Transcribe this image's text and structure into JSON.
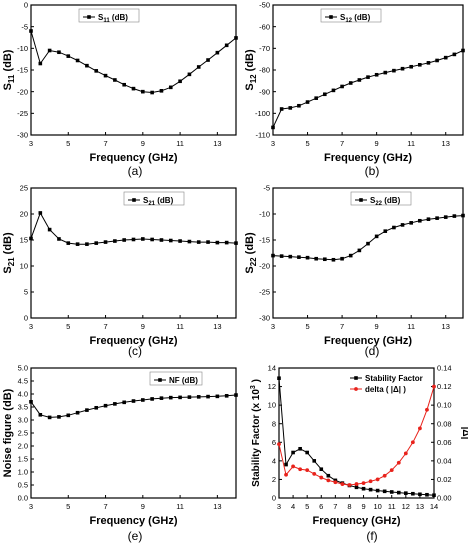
{
  "chart_data": [
    {
      "type": "line",
      "panel_label": "(a)",
      "xlabel": "Frequency (GHz)",
      "ylabel": "S11 (dB)",
      "ylabel_main": "S",
      "ylabel_sub": "11",
      "ylabel_rest": " (dB)",
      "xlim": [
        3,
        14
      ],
      "ylim": [
        -30,
        0
      ],
      "xticks": [
        "3",
        "5",
        "7",
        "9",
        "11",
        "13"
      ],
      "xtick_values": [
        3,
        5,
        7,
        9,
        11,
        13
      ],
      "yticks": [
        "-30",
        "-25",
        "-20",
        "-15",
        "-10",
        "-5",
        "0"
      ],
      "ytick_values": [
        -30,
        -25,
        -20,
        -15,
        -10,
        -5,
        0
      ],
      "grid": false,
      "legend_position": "top-left",
      "series": [
        {
          "legend_main": "S",
          "legend_sub": "11",
          "legend_rest": " (dB)",
          "color": "#000000",
          "marker": "square",
          "x": [
            3,
            3.5,
            4,
            4.5,
            5,
            5.5,
            6,
            6.5,
            7,
            7.5,
            8,
            8.5,
            9,
            9.5,
            10,
            10.5,
            11,
            11.5,
            12,
            12.5,
            13,
            13.5,
            14
          ],
          "y": [
            -6,
            -13.5,
            -10.5,
            -10.9,
            -11.8,
            -12.8,
            -14,
            -15.2,
            -16.3,
            -17.3,
            -18.4,
            -19.3,
            -20,
            -20.2,
            -19.8,
            -19,
            -17.6,
            -16,
            -14.3,
            -12.7,
            -11,
            -9.3,
            -7.6
          ]
        }
      ]
    },
    {
      "type": "line",
      "panel_label": "(b)",
      "xlabel": "Frequency (GHz)",
      "ylabel": "S12 (dB)",
      "ylabel_main": "S",
      "ylabel_sub": "12",
      "ylabel_rest": " (dB)",
      "xlim": [
        3,
        14
      ],
      "ylim": [
        -110,
        -50
      ],
      "xticks": [
        "3",
        "5",
        "7",
        "9",
        "11",
        "13"
      ],
      "xtick_values": [
        3,
        5,
        7,
        9,
        11,
        13
      ],
      "yticks": [
        "-110",
        "-100",
        "-90",
        "-80",
        "-70",
        "-60",
        "-50"
      ],
      "ytick_values": [
        -110,
        -100,
        -90,
        -80,
        -70,
        -60,
        -50
      ],
      "grid": false,
      "legend_position": "top-left",
      "series": [
        {
          "legend_main": "S",
          "legend_sub": "12",
          "legend_rest": " (dB)",
          "color": "#000000",
          "marker": "square",
          "x": [
            3,
            3.5,
            4,
            4.5,
            5,
            5.5,
            6,
            6.5,
            7,
            7.5,
            8,
            8.5,
            9,
            9.5,
            10,
            10.5,
            11,
            11.5,
            12,
            12.5,
            13,
            13.5,
            14
          ],
          "y": [
            -106.5,
            -98,
            -97.5,
            -96.5,
            -94.8,
            -93,
            -91.2,
            -89.4,
            -87.6,
            -86,
            -84.6,
            -83.3,
            -82.2,
            -81.2,
            -80.3,
            -79.4,
            -78.5,
            -77.6,
            -76.7,
            -75.6,
            -74.3,
            -72.8,
            -71
          ]
        }
      ]
    },
    {
      "type": "line",
      "panel_label": "(c)",
      "xlabel": "Frequency (GHz)",
      "ylabel": "S21 (dB)",
      "ylabel_main": "S",
      "ylabel_sub": "21",
      "ylabel_rest": " (dB)",
      "xlim": [
        3,
        14
      ],
      "ylim": [
        0,
        25
      ],
      "xticks": [
        "3",
        "5",
        "7",
        "9",
        "11",
        "13"
      ],
      "xtick_values": [
        3,
        5,
        7,
        9,
        11,
        13
      ],
      "yticks": [
        "0",
        "5",
        "10",
        "15",
        "20",
        "25"
      ],
      "ytick_values": [
        0,
        5,
        10,
        15,
        20,
        25
      ],
      "grid": false,
      "legend_position": "top-right",
      "series": [
        {
          "legend_main": "S",
          "legend_sub": "21",
          "legend_rest": " (dB)",
          "color": "#000000",
          "marker": "square",
          "x": [
            3,
            3.5,
            4,
            4.5,
            5,
            5.5,
            6,
            6.5,
            7,
            7.5,
            8,
            8.5,
            9,
            9.5,
            10,
            10.5,
            11,
            11.5,
            12,
            12.5,
            13,
            13.5,
            14
          ],
          "y": [
            15.3,
            20.2,
            17,
            15.2,
            14.4,
            14.2,
            14.2,
            14.4,
            14.6,
            14.8,
            15,
            15.1,
            15.2,
            15.1,
            15,
            14.9,
            14.8,
            14.7,
            14.6,
            14.6,
            14.5,
            14.5,
            14.4
          ]
        }
      ]
    },
    {
      "type": "line",
      "panel_label": "(d)",
      "xlabel": "Frequency (GHz)",
      "ylabel": "S22 (dB)",
      "ylabel_main": "S",
      "ylabel_sub": "22",
      "ylabel_rest": " (dB)",
      "xlim": [
        3,
        14
      ],
      "ylim": [
        -30,
        -5
      ],
      "xticks": [
        "3",
        "5",
        "7",
        "9",
        "11",
        "13"
      ],
      "xtick_values": [
        3,
        5,
        7,
        9,
        11,
        13
      ],
      "yticks": [
        "-30",
        "-25",
        "-20",
        "-15",
        "-10",
        "-5"
      ],
      "ytick_values": [
        -30,
        -25,
        -20,
        -15,
        -10,
        -5
      ],
      "grid": false,
      "legend_position": "top-right",
      "series": [
        {
          "legend_main": "S",
          "legend_sub": "22",
          "legend_rest": " (dB)",
          "color": "#000000",
          "marker": "square",
          "x": [
            3,
            3.5,
            4,
            4.5,
            5,
            5.5,
            6,
            6.5,
            7,
            7.5,
            8,
            8.5,
            9,
            9.5,
            10,
            10.5,
            11,
            11.5,
            12,
            12.5,
            13,
            13.5,
            14
          ],
          "y": [
            -18,
            -18.1,
            -18.2,
            -18.3,
            -18.4,
            -18.6,
            -18.7,
            -18.8,
            -18.6,
            -18,
            -17,
            -15.7,
            -14.3,
            -13.3,
            -12.6,
            -12.1,
            -11.7,
            -11.3,
            -11,
            -10.8,
            -10.6,
            -10.4,
            -10.3
          ]
        }
      ]
    },
    {
      "type": "line",
      "panel_label": "(e)",
      "xlabel": "Frequency (GHz)",
      "ylabel": "Noise figure (dB)",
      "xlim": [
        3,
        14
      ],
      "ylim": [
        0,
        5
      ],
      "xticks": [
        "3",
        "5",
        "7",
        "9",
        "11",
        "13"
      ],
      "xtick_values": [
        3,
        5,
        7,
        9,
        11,
        13
      ],
      "yticks": [
        "0.0",
        "0.5",
        "1.0",
        "1.5",
        "2.0",
        "2.5",
        "3.0",
        "3.5",
        "4.0",
        "4.5",
        "5.0"
      ],
      "ytick_values": [
        0,
        0.5,
        1,
        1.5,
        2,
        2.5,
        3,
        3.5,
        4,
        4.5,
        5
      ],
      "grid": false,
      "legend_position": "top-right",
      "series": [
        {
          "name": "NF (dB)",
          "color": "#000000",
          "marker": "square",
          "x": [
            3,
            3.5,
            4,
            4.5,
            5,
            5.5,
            6,
            6.5,
            7,
            7.5,
            8,
            8.5,
            9,
            9.5,
            10,
            10.5,
            11,
            11.5,
            12,
            12.5,
            13,
            13.5,
            14
          ],
          "y": [
            3.7,
            3.2,
            3.1,
            3.12,
            3.18,
            3.28,
            3.38,
            3.47,
            3.55,
            3.62,
            3.68,
            3.73,
            3.77,
            3.81,
            3.84,
            3.86,
            3.87,
            3.88,
            3.89,
            3.9,
            3.91,
            3.93,
            3.96
          ]
        }
      ]
    },
    {
      "type": "line",
      "panel_label": "(f)",
      "xlabel": "Frequency (GHz)",
      "ylabel": "Stability Factor (x 10^3 )",
      "ylabel_main": "Stability Factor (x 10",
      "ylabel_sup": "3",
      "ylabel_rest": " )",
      "y2label": "|Δ|",
      "xlim": [
        3,
        14
      ],
      "ylim": [
        0,
        14
      ],
      "y2lim": [
        0,
        0.14
      ],
      "xticks": [
        "3",
        "4",
        "5",
        "6",
        "7",
        "8",
        "9",
        "10",
        "11",
        "12",
        "13",
        "14"
      ],
      "xtick_values": [
        3,
        4,
        5,
        6,
        7,
        8,
        9,
        10,
        11,
        12,
        13,
        14
      ],
      "yticks": [
        "0",
        "2",
        "4",
        "6",
        "8",
        "10",
        "12",
        "14"
      ],
      "ytick_values": [
        0,
        2,
        4,
        6,
        8,
        10,
        12,
        14
      ],
      "y2ticks": [
        "0.00",
        "0.02",
        "0.04",
        "0.06",
        "0.08",
        "0.10",
        "0.12",
        "0.14"
      ],
      "y2tick_values": [
        0,
        0.02,
        0.04,
        0.06,
        0.08,
        0.1,
        0.12,
        0.14
      ],
      "grid": false,
      "legend_position": "top-right",
      "series": [
        {
          "name": "Stability Factor",
          "color": "#000000",
          "marker": "square",
          "axis": "left",
          "x": [
            3,
            3.5,
            4,
            4.5,
            5,
            5.5,
            6,
            6.5,
            7,
            7.5,
            8,
            8.5,
            9,
            9.5,
            10,
            10.5,
            11,
            11.5,
            12,
            12.5,
            13,
            13.5,
            14
          ],
          "y": [
            12.9,
            3.6,
            4.9,
            5.3,
            4.9,
            4.0,
            3.1,
            2.4,
            1.9,
            1.6,
            1.35,
            1.15,
            1.0,
            0.9,
            0.8,
            0.72,
            0.65,
            0.58,
            0.52,
            0.46,
            0.4,
            0.35,
            0.3
          ]
        },
        {
          "name": "delta ( |Δ| )",
          "color": "#e8221b",
          "marker": "circle",
          "axis": "right",
          "x": [
            3,
            3.5,
            4,
            4.5,
            5,
            5.5,
            6,
            6.5,
            7,
            7.5,
            8,
            8.5,
            9,
            9.5,
            10,
            10.5,
            11,
            11.5,
            12,
            12.5,
            13,
            13.5,
            14
          ],
          "y": [
            0.058,
            0.025,
            0.034,
            0.031,
            0.03,
            0.026,
            0.022,
            0.019,
            0.017,
            0.015,
            0.014,
            0.015,
            0.016,
            0.018,
            0.02,
            0.024,
            0.03,
            0.038,
            0.048,
            0.06,
            0.075,
            0.095,
            0.12
          ]
        }
      ]
    }
  ]
}
